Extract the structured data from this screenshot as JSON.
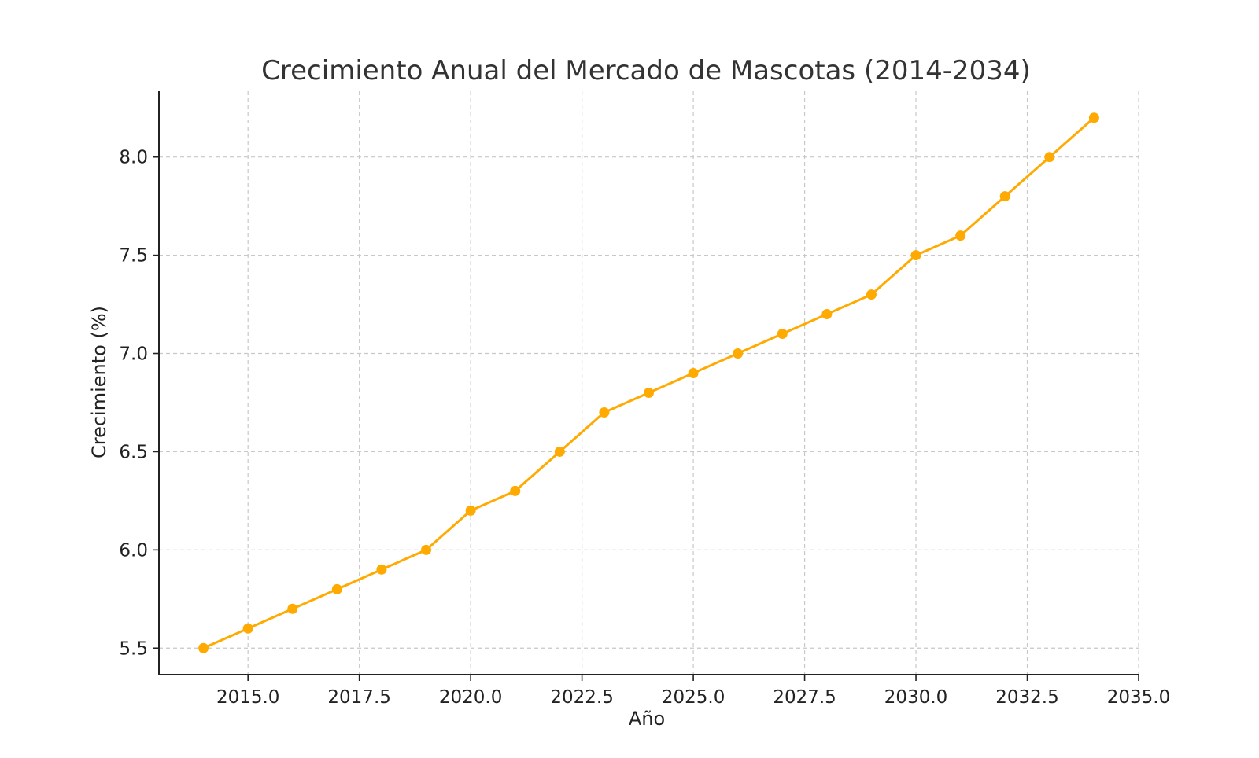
{
  "chart_data": {
    "type": "line",
    "title": "Crecimiento Anual del Mercado de Mascotas (2014-2034)",
    "xlabel": "Año",
    "ylabel": "Crecimiento (%)",
    "xlim": [
      2013,
      2035
    ],
    "ylim": [
      5.365,
      8.335
    ],
    "xticks": [
      2015.0,
      2017.5,
      2020.0,
      2022.5,
      2025.0,
      2027.5,
      2030.0,
      2032.5,
      2035.0
    ],
    "xtick_labels": [
      "2015.0",
      "2017.5",
      "2020.0",
      "2022.5",
      "2025.0",
      "2027.5",
      "2030.0",
      "2032.5",
      "2035.0"
    ],
    "yticks": [
      5.5,
      6.0,
      6.5,
      7.0,
      7.5,
      8.0
    ],
    "ytick_labels": [
      "5.5",
      "6.0",
      "6.5",
      "7.0",
      "7.5",
      "8.0"
    ],
    "grid": true,
    "series": [
      {
        "name": "Crecimiento",
        "color": "#FFAA00",
        "x": [
          2014,
          2015,
          2016,
          2017,
          2018,
          2019,
          2020,
          2021,
          2022,
          2023,
          2024,
          2025,
          2026,
          2027,
          2028,
          2029,
          2030,
          2031,
          2032,
          2033,
          2034
        ],
        "values": [
          5.5,
          5.6,
          5.7,
          5.8,
          5.9,
          6.0,
          6.2,
          6.3,
          6.5,
          6.7,
          6.8,
          6.9,
          7.0,
          7.1,
          7.2,
          7.3,
          7.5,
          7.6,
          7.8,
          8.0,
          8.2
        ]
      }
    ]
  }
}
